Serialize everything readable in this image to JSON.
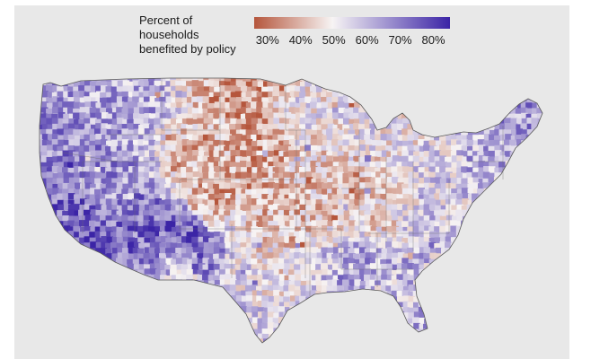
{
  "legend": {
    "title": "Percent of households\nbenefited by policy",
    "ticks": [
      "30%",
      "40%",
      "50%",
      "60%",
      "70%",
      "80%"
    ],
    "tick_values": [
      30,
      40,
      50,
      60,
      70,
      80
    ],
    "min_value": 26,
    "max_value": 85,
    "low_color": "#b5563c",
    "mid_color": "#f7f4f4",
    "high_color": "#3b24a6"
  },
  "map": {
    "background_color": "#e8e8e8",
    "region": "Contiguous United States",
    "regional_pattern": [
      {
        "region": "Pacific coast and Southwest",
        "tendency": "high"
      },
      {
        "region": "Northern Plains and Mountain states",
        "tendency": "low"
      },
      {
        "region": "Central Midwest",
        "tendency": "low"
      },
      {
        "region": "Northeast",
        "tendency": "high"
      },
      {
        "region": "Deep South",
        "tendency": "high"
      },
      {
        "region": "Texas (east/south)",
        "tendency": "mixed"
      }
    ]
  }
}
